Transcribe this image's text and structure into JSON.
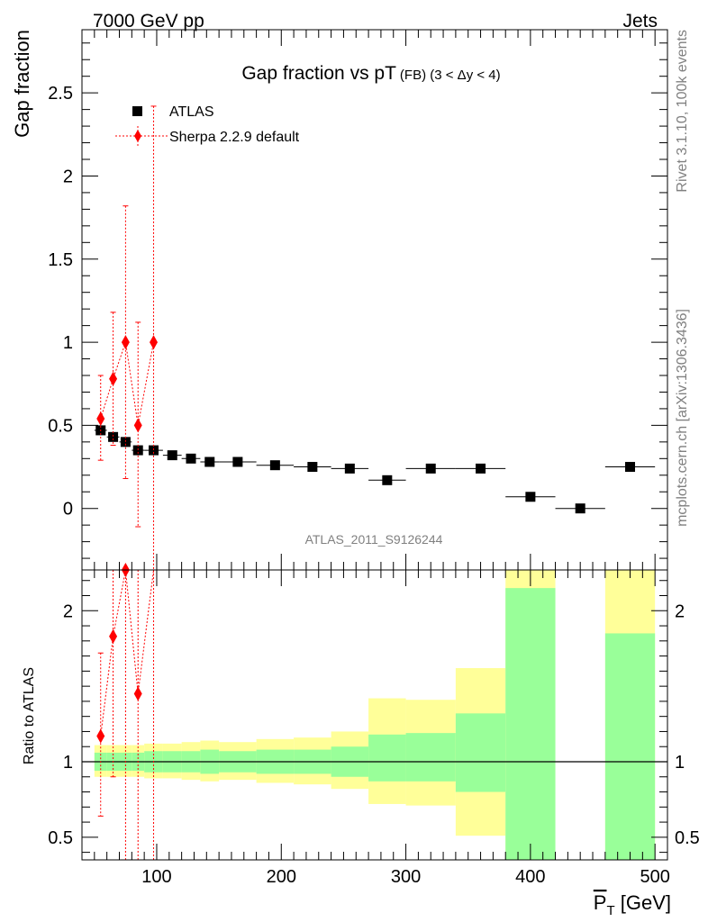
{
  "header": {
    "left": "7000 GeV pp",
    "right": "Jets",
    "side_top": "Rivet 3.1.10,  100k events",
    "side_bottom": "mcplots.cern.ch [arXiv:1306.3436]"
  },
  "chart_data": [
    {
      "type": "scatter",
      "title_main": "Gap fraction vs pT",
      "title_small": "(FB) (3 < Δy < 4)",
      "ylabel": "Gap fraction",
      "watermark": "ATLAS_2011_S9126244",
      "xlim": [
        40,
        510
      ],
      "ylim": [
        -0.37,
        2.88
      ],
      "yticks": [
        0,
        0.5,
        1,
        1.5,
        2,
        2.5
      ],
      "ytick_labels": [
        "0",
        "0.5",
        "1",
        "1.5",
        "2",
        "2.5"
      ],
      "legend_position": "top-left",
      "series": [
        {
          "name": "ATLAS",
          "color": "#000000",
          "marker": "square",
          "x": [
            55,
            65,
            75,
            85,
            97.5,
            112.5,
            127.5,
            142.5,
            165,
            195,
            225,
            255,
            285,
            320,
            360,
            400,
            440,
            480
          ],
          "y": [
            0.47,
            0.43,
            0.4,
            0.35,
            0.35,
            0.32,
            0.3,
            0.28,
            0.28,
            0.26,
            0.25,
            0.24,
            0.17,
            0.24,
            0.24,
            0.07,
            0.0,
            0.25
          ],
          "xerr": [
            5,
            5,
            5,
            5,
            7.5,
            7.5,
            7.5,
            7.5,
            15,
            15,
            15,
            15,
            15,
            20,
            20,
            20,
            20,
            20
          ]
        },
        {
          "name": "Sherpa 2.2.9 default",
          "color": "#ff0000",
          "marker": "diamond",
          "x": [
            55,
            65,
            75,
            85,
            97.5
          ],
          "y": [
            0.54,
            0.78,
            1.0,
            0.5,
            1.0
          ],
          "yerr_low": [
            0.25,
            0.4,
            0.82,
            0.61,
            1.4
          ],
          "yerr_high": [
            0.26,
            0.4,
            0.82,
            0.62,
            1.42
          ]
        }
      ]
    },
    {
      "type": "area",
      "ylabel": "Ratio to ATLAS",
      "xlabel_main": "P",
      "xlabel_sub": "T",
      "xlabel_unit": " [GeV]",
      "xlim": [
        40,
        510
      ],
      "ylim": [
        0.35,
        2.27
      ],
      "xticks": [
        100,
        200,
        300,
        400,
        500
      ],
      "xtick_labels": [
        "100",
        "200",
        "300",
        "400",
        "500"
      ],
      "yticks": [
        0.5,
        1,
        2
      ],
      "ytick_labels": [
        "0.5",
        "1",
        "2"
      ],
      "bands": {
        "edges": [
          50,
          60,
          70,
          80,
          90,
          105,
          120,
          135,
          150,
          180,
          210,
          240,
          270,
          300,
          340,
          380,
          420,
          460,
          500
        ],
        "green_low": [
          0.94,
          0.94,
          0.94,
          0.94,
          0.93,
          0.93,
          0.93,
          0.92,
          0.93,
          0.92,
          0.92,
          0.9,
          0.87,
          0.87,
          0.8,
          0.3,
          null,
          0.3
        ],
        "green_high": [
          1.06,
          1.06,
          1.06,
          1.06,
          1.07,
          1.07,
          1.07,
          1.08,
          1.07,
          1.08,
          1.08,
          1.1,
          1.18,
          1.19,
          1.32,
          2.15,
          null,
          1.85
        ],
        "yellow_low": [
          0.9,
          0.9,
          0.9,
          0.9,
          0.89,
          0.89,
          0.88,
          0.87,
          0.88,
          0.86,
          0.85,
          0.82,
          0.72,
          0.71,
          0.51,
          0.3,
          null,
          0.3
        ],
        "yellow_high": [
          1.11,
          1.11,
          1.11,
          1.11,
          1.12,
          1.12,
          1.13,
          1.14,
          1.13,
          1.15,
          1.16,
          1.2,
          1.42,
          1.41,
          1.62,
          2.27,
          null,
          2.27
        ]
      },
      "series": [
        {
          "name": "Sherpa 2.2.9 default",
          "color": "#ff0000",
          "x": [
            55,
            65,
            75,
            85,
            97.5
          ],
          "y": [
            1.17,
            1.83,
            2.27,
            1.45,
            2.3
          ],
          "yerr_low": [
            0.53,
            0.93,
            2.0,
            1.2,
            2.0
          ],
          "yerr_high": [
            0.55,
            0.95,
            2.0,
            1.25,
            2.0
          ]
        }
      ],
      "reference_line": 1.0
    }
  ]
}
